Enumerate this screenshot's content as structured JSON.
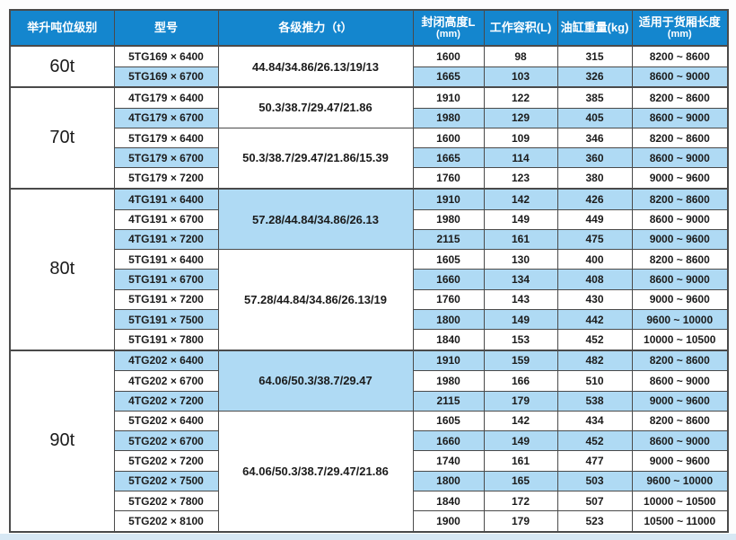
{
  "colors": {
    "header_bg": "#1486CE",
    "header_text": "#ffffff",
    "row_highlight": "#AFDAF4",
    "border": "#4a4a4a",
    "text": "#1b1b1b"
  },
  "table": {
    "headers": [
      {
        "label": "举升吨位级别",
        "sub": ""
      },
      {
        "label": "型号",
        "sub": ""
      },
      {
        "label": "各级推力（t）",
        "sub": ""
      },
      {
        "label": "封闭高度L",
        "sub": "(mm)"
      },
      {
        "label": "工作容积(L)",
        "sub": ""
      },
      {
        "label": "油缸重量(kg)",
        "sub": ""
      },
      {
        "label": "适用于货厢长度",
        "sub": "(mm)"
      }
    ],
    "groups": [
      {
        "tonnage": "60t",
        "subgroups": [
          {
            "thrust": "44.84/34.86/26.13/19/13",
            "thrust_highlight": false,
            "rows": [
              {
                "model": "5TG169 × 6400",
                "closed_height": "1600",
                "volume": "98",
                "weight": "315",
                "box_length": "8200 ~ 8600",
                "highlight": false
              },
              {
                "model": "5TG169 × 6700",
                "closed_height": "1665",
                "volume": "103",
                "weight": "326",
                "box_length": "8600 ~ 9000",
                "highlight": true
              }
            ]
          }
        ]
      },
      {
        "tonnage": "70t",
        "subgroups": [
          {
            "thrust": "50.3/38.7/29.47/21.86",
            "thrust_highlight": false,
            "rows": [
              {
                "model": "4TG179 × 6400",
                "closed_height": "1910",
                "volume": "122",
                "weight": "385",
                "box_length": "8200 ~ 8600",
                "highlight": false
              },
              {
                "model": "4TG179 × 6700",
                "closed_height": "1980",
                "volume": "129",
                "weight": "405",
                "box_length": "8600 ~ 9000",
                "highlight": true
              }
            ]
          },
          {
            "thrust": "50.3/38.7/29.47/21.86/15.39",
            "thrust_highlight": false,
            "rows": [
              {
                "model": "5TG179 × 6400",
                "closed_height": "1600",
                "volume": "109",
                "weight": "346",
                "box_length": "8200 ~ 8600",
                "highlight": false
              },
              {
                "model": "5TG179 × 6700",
                "closed_height": "1665",
                "volume": "114",
                "weight": "360",
                "box_length": "8600 ~ 9000",
                "highlight": true
              },
              {
                "model": "5TG179 × 7200",
                "closed_height": "1760",
                "volume": "123",
                "weight": "380",
                "box_length": "9000 ~ 9600",
                "highlight": false
              }
            ]
          }
        ]
      },
      {
        "tonnage": "80t",
        "subgroups": [
          {
            "thrust": "57.28/44.84/34.86/26.13",
            "thrust_highlight": true,
            "rows": [
              {
                "model": "4TG191 × 6400",
                "closed_height": "1910",
                "volume": "142",
                "weight": "426",
                "box_length": "8200 ~ 8600",
                "highlight": true
              },
              {
                "model": "4TG191 × 6700",
                "closed_height": "1980",
                "volume": "149",
                "weight": "449",
                "box_length": "8600 ~ 9000",
                "highlight": false
              },
              {
                "model": "4TG191 × 7200",
                "closed_height": "2115",
                "volume": "161",
                "weight": "475",
                "box_length": "9000 ~ 9600",
                "highlight": true
              }
            ]
          },
          {
            "thrust": "57.28/44.84/34.86/26.13/19",
            "thrust_highlight": false,
            "rows": [
              {
                "model": "5TG191 × 6400",
                "closed_height": "1605",
                "volume": "130",
                "weight": "400",
                "box_length": "8200 ~ 8600",
                "highlight": false
              },
              {
                "model": "5TG191 × 6700",
                "closed_height": "1660",
                "volume": "134",
                "weight": "408",
                "box_length": "8600 ~ 9000",
                "highlight": true
              },
              {
                "model": "5TG191 × 7200",
                "closed_height": "1760",
                "volume": "143",
                "weight": "430",
                "box_length": "9000 ~ 9600",
                "highlight": false
              },
              {
                "model": "5TG191 × 7500",
                "closed_height": "1800",
                "volume": "149",
                "weight": "442",
                "box_length": "9600 ~ 10000",
                "highlight": true
              },
              {
                "model": "5TG191 × 7800",
                "closed_height": "1840",
                "volume": "153",
                "weight": "452",
                "box_length": "10000 ~ 10500",
                "highlight": false
              }
            ]
          }
        ]
      },
      {
        "tonnage": "90t",
        "subgroups": [
          {
            "thrust": "64.06/50.3/38.7/29.47",
            "thrust_highlight": true,
            "rows": [
              {
                "model": "4TG202 × 6400",
                "closed_height": "1910",
                "volume": "159",
                "weight": "482",
                "box_length": "8200 ~ 8600",
                "highlight": true
              },
              {
                "model": "4TG202 × 6700",
                "closed_height": "1980",
                "volume": "166",
                "weight": "510",
                "box_length": "8600 ~ 9000",
                "highlight": false
              },
              {
                "model": "4TG202 × 7200",
                "closed_height": "2115",
                "volume": "179",
                "weight": "538",
                "box_length": "9000 ~ 9600",
                "highlight": true
              }
            ]
          },
          {
            "thrust": "64.06/50.3/38.7/29.47/21.86",
            "thrust_highlight": false,
            "rows": [
              {
                "model": "5TG202 × 6400",
                "closed_height": "1605",
                "volume": "142",
                "weight": "434",
                "box_length": "8200 ~ 8600",
                "highlight": false
              },
              {
                "model": "5TG202 × 6700",
                "closed_height": "1660",
                "volume": "149",
                "weight": "452",
                "box_length": "8600 ~ 9000",
                "highlight": true
              },
              {
                "model": "5TG202 × 7200",
                "closed_height": "1740",
                "volume": "161",
                "weight": "477",
                "box_length": "9000 ~ 9600",
                "highlight": false
              },
              {
                "model": "5TG202 × 7500",
                "closed_height": "1800",
                "volume": "165",
                "weight": "503",
                "box_length": "9600 ~ 10000",
                "highlight": true
              },
              {
                "model": "5TG202 × 7800",
                "closed_height": "1840",
                "volume": "172",
                "weight": "507",
                "box_length": "10000 ~ 10500",
                "highlight": false
              },
              {
                "model": "5TG202 × 8100",
                "closed_height": "1900",
                "volume": "179",
                "weight": "523",
                "box_length": "10500 ~ 11000",
                "highlight": false
              }
            ]
          }
        ]
      }
    ]
  }
}
